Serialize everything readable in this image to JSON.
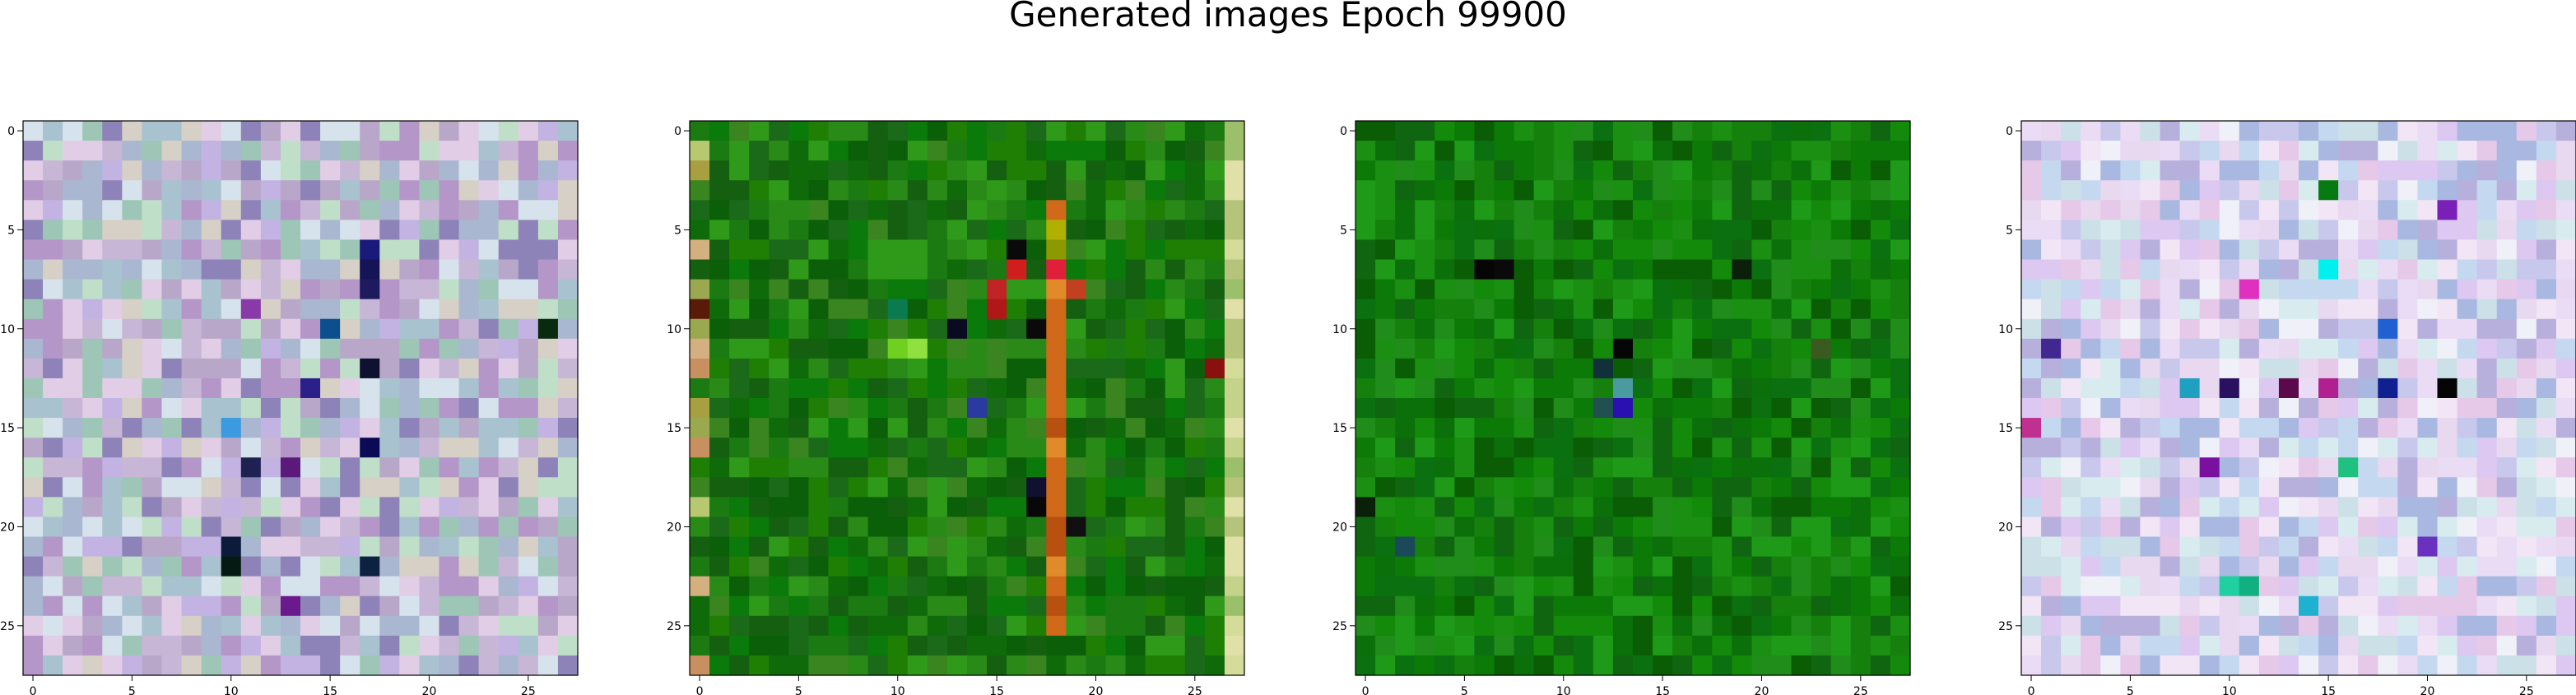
{
  "figure": {
    "title": "Generated images Epoch 99900"
  },
  "chart_data": [
    {
      "type": "heatmap",
      "title": "",
      "xlabel": "",
      "ylabel": "",
      "grid": false,
      "size": [
        28,
        28
      ],
      "xlim": [
        -0.5,
        27.5
      ],
      "ylim": [
        27.5,
        -0.5
      ],
      "xticks": [
        0,
        5,
        10,
        15,
        20,
        25
      ],
      "yticks": [
        0,
        5,
        10,
        15,
        20,
        25
      ],
      "pattern": "pastel-noise",
      "palette": [
        "#b9a7c9",
        "#c8b6d6",
        "#a9c2cf",
        "#d6d0c6",
        "#9dc6b6",
        "#e1cde6",
        "#c2b3e3",
        "#aab7d0",
        "#d7e3ec",
        "#8d83b8",
        "#c0dfc8",
        "#b496c8"
      ],
      "accents": [
        {
          "r": 7,
          "c": 17,
          "color": "#141456"
        },
        {
          "r": 8,
          "c": 17,
          "color": "#1d1a5e"
        },
        {
          "r": 10,
          "c": 15,
          "color": "#0d4f8c"
        },
        {
          "r": 12,
          "c": 17,
          "color": "#0f1130"
        },
        {
          "r": 13,
          "c": 14,
          "color": "#2b1f8a"
        },
        {
          "r": 16,
          "c": 17,
          "color": "#0b0b55"
        },
        {
          "r": 17,
          "c": 11,
          "color": "#1f2250"
        },
        {
          "r": 17,
          "c": 13,
          "color": "#5b1a7a"
        },
        {
          "r": 21,
          "c": 10,
          "color": "#0c1b3a"
        },
        {
          "r": 22,
          "c": 10,
          "color": "#041a12"
        },
        {
          "r": 24,
          "c": 13,
          "color": "#6a1a8c"
        },
        {
          "r": 10,
          "c": 26,
          "color": "#0a2a10"
        },
        {
          "r": 15,
          "c": 10,
          "color": "#3b9ae0"
        },
        {
          "r": 9,
          "c": 11,
          "color": "#8a3aa8"
        },
        {
          "r": 22,
          "c": 17,
          "color": "#0d2240"
        },
        {
          "r": 6,
          "c": 17,
          "color": "#1a1a7a"
        }
      ]
    },
    {
      "type": "heatmap",
      "title": "",
      "xlabel": "",
      "ylabel": "",
      "grid": false,
      "size": [
        28,
        28
      ],
      "xlim": [
        -0.5,
        27.5
      ],
      "ylim": [
        27.5,
        -0.5
      ],
      "xticks": [
        0,
        5,
        10,
        15,
        20,
        25
      ],
      "yticks": [
        0,
        5,
        10,
        15,
        20,
        25
      ],
      "pattern": "green-with-orange-streak",
      "palette": [
        "#1b7a12",
        "#0f6a0a",
        "#2a8a18",
        "#1f7f05",
        "#0b5f08",
        "#2f9a1a",
        "#155f10",
        "#3a8520",
        "#0a7a0a",
        "#1a6a1a"
      ],
      "accents": [
        {
          "r": 7,
          "c": 16,
          "color": "#d01e1e"
        },
        {
          "r": 7,
          "c": 18,
          "color": "#e0203a"
        },
        {
          "r": 8,
          "c": 19,
          "color": "#c04020"
        },
        {
          "r": 9,
          "c": 15,
          "color": "#b01818"
        },
        {
          "r": 8,
          "c": 15,
          "color": "#c02424"
        },
        {
          "r": 10,
          "c": 17,
          "color": "#0a0a0a"
        },
        {
          "r": 6,
          "c": 18,
          "color": "#8a9a00"
        },
        {
          "r": 5,
          "c": 18,
          "color": "#b0b000"
        },
        {
          "r": 11,
          "c": 10,
          "color": "#70d020"
        },
        {
          "r": 11,
          "c": 11,
          "color": "#90e040"
        },
        {
          "r": 9,
          "c": 10,
          "color": "#0a7a50"
        },
        {
          "r": 10,
          "c": 13,
          "color": "#0a0a20"
        },
        {
          "r": 14,
          "c": 14,
          "color": "#2a3aa0"
        },
        {
          "r": 18,
          "c": 17,
          "color": "#101030"
        },
        {
          "r": 19,
          "c": 17,
          "color": "#080808"
        },
        {
          "r": 20,
          "c": 19,
          "color": "#101010"
        },
        {
          "r": 12,
          "c": 26,
          "color": "#8a1010"
        },
        {
          "r": 9,
          "c": 0,
          "color": "#5a1a08"
        },
        {
          "r": 6,
          "c": 16,
          "color": "#0a0a0a"
        }
      ],
      "streak": {
        "col": 18,
        "color": "#d06a1a"
      },
      "edge": {
        "col": 27,
        "colors": [
          "#b5c47a",
          "#d5dc9a",
          "#c4d28a",
          "#e0e0a8",
          "#9cbf6a"
        ]
      },
      "leftEdge": {
        "col": 0,
        "colors": [
          "#b8c870",
          "#c89060",
          "#a8a040",
          "#d4b080",
          "#9aa850"
        ]
      }
    },
    {
      "type": "heatmap",
      "title": "",
      "xlabel": "",
      "ylabel": "",
      "grid": false,
      "size": [
        28,
        28
      ],
      "xlim": [
        -0.5,
        27.5
      ],
      "ylim": [
        27.5,
        -0.5
      ],
      "xticks": [
        0,
        5,
        10,
        15,
        20,
        25
      ],
      "yticks": [
        0,
        5,
        10,
        15,
        20,
        25
      ],
      "pattern": "green-noise",
      "palette": [
        "#138a0a",
        "#0b6f0a",
        "#1a8f12",
        "#0c7a07",
        "#0a5d05",
        "#1e9a18",
        "#106610",
        "#15800c",
        "#0a7010",
        "#208c1a"
      ],
      "accents": [
        {
          "r": 7,
          "c": 6,
          "color": "#050505"
        },
        {
          "r": 7,
          "c": 7,
          "color": "#0a0a0a"
        },
        {
          "r": 7,
          "c": 19,
          "color": "#0a200a"
        },
        {
          "r": 11,
          "c": 13,
          "color": "#050505"
        },
        {
          "r": 12,
          "c": 12,
          "color": "#10303a"
        },
        {
          "r": 13,
          "c": 13,
          "color": "#4a9aa0"
        },
        {
          "r": 14,
          "c": 13,
          "color": "#2a10b0"
        },
        {
          "r": 14,
          "c": 12,
          "color": "#205050"
        },
        {
          "r": 21,
          "c": 2,
          "color": "#1a4a5a"
        },
        {
          "r": 19,
          "c": 0,
          "color": "#0a200a"
        },
        {
          "r": 11,
          "c": 23,
          "color": "#3a5a20"
        }
      ]
    },
    {
      "type": "heatmap",
      "title": "",
      "xlabel": "",
      "ylabel": "",
      "grid": false,
      "size": [
        28,
        28
      ],
      "xlim": [
        -0.5,
        27.5
      ],
      "ylim": [
        27.5,
        -0.5
      ],
      "xticks": [
        0,
        5,
        10,
        15,
        20,
        25
      ],
      "yticks": [
        0,
        5,
        10,
        15,
        20,
        25
      ],
      "pattern": "bright-pastel-noise",
      "palette": [
        "#e8d8f0",
        "#f2e6f6",
        "#c8c8ec",
        "#d8ecf0",
        "#e6c8e8",
        "#b8b0dc",
        "#f0f0f8",
        "#cce0e8",
        "#dcc8f0",
        "#c4d8f0",
        "#eadcf4",
        "#a8b8e0"
      ],
      "accents": [
        {
          "r": 3,
          "c": 15,
          "color": "#087a14"
        },
        {
          "r": 4,
          "c": 21,
          "color": "#7a20b8"
        },
        {
          "r": 7,
          "c": 15,
          "color": "#00f0f0"
        },
        {
          "r": 8,
          "c": 11,
          "color": "#e030c0"
        },
        {
          "r": 10,
          "c": 18,
          "color": "#2060d0"
        },
        {
          "r": 11,
          "c": 1,
          "color": "#402890"
        },
        {
          "r": 13,
          "c": 10,
          "color": "#2a1060"
        },
        {
          "r": 13,
          "c": 13,
          "color": "#5a0a4a"
        },
        {
          "r": 13,
          "c": 18,
          "color": "#102090"
        },
        {
          "r": 13,
          "c": 21,
          "color": "#050505"
        },
        {
          "r": 13,
          "c": 8,
          "color": "#20a0c0"
        },
        {
          "r": 13,
          "c": 15,
          "color": "#b02090"
        },
        {
          "r": 17,
          "c": 16,
          "color": "#20c080"
        },
        {
          "r": 17,
          "c": 9,
          "color": "#7a10a0"
        },
        {
          "r": 23,
          "c": 10,
          "color": "#20d0a0"
        },
        {
          "r": 23,
          "c": 11,
          "color": "#10b080"
        },
        {
          "r": 24,
          "c": 14,
          "color": "#20b0d0"
        },
        {
          "r": 15,
          "c": 0,
          "color": "#c03090"
        },
        {
          "r": 21,
          "c": 20,
          "color": "#6a30c0"
        }
      ]
    }
  ]
}
